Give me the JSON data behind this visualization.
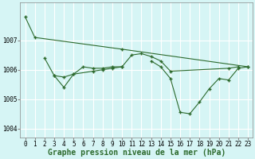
{
  "background_color": "#d6f5f5",
  "grid_color": "#ffffff",
  "line_color": "#2d6a2d",
  "marker_color": "#2d6a2d",
  "xlabel": "Graphe pression niveau de la mer (hPa)",
  "xlabel_fontsize": 7,
  "tick_fontsize": 5.5,
  "xlim": [
    -0.5,
    23.5
  ],
  "ylim": [
    1003.7,
    1008.3
  ],
  "yticks": [
    1004,
    1005,
    1006,
    1007
  ],
  "xticks": [
    0,
    1,
    2,
    3,
    4,
    5,
    6,
    7,
    8,
    9,
    10,
    11,
    12,
    13,
    14,
    15,
    16,
    17,
    18,
    19,
    20,
    21,
    22,
    23
  ],
  "series": [
    {
      "x": [
        0,
        1,
        10,
        23
      ],
      "y": [
        1007.8,
        1007.1,
        1006.7,
        1006.1
      ]
    },
    {
      "x": [
        2,
        3,
        4,
        5,
        6,
        7,
        8,
        9,
        10,
        11,
        12,
        13,
        14,
        15,
        21,
        22
      ],
      "y": [
        1006.4,
        1005.8,
        1005.75,
        1005.85,
        1006.1,
        1006.05,
        1006.05,
        1006.1,
        1006.1,
        1006.5,
        1006.55,
        1006.45,
        1006.3,
        1005.95,
        1006.05,
        1006.1
      ]
    },
    {
      "x": [
        3,
        4,
        5,
        7,
        8,
        9,
        10
      ],
      "y": [
        1005.8,
        1005.4,
        1005.85,
        1005.95,
        1006.0,
        1006.05,
        1006.1
      ]
    },
    {
      "x": [
        13,
        14,
        15,
        16,
        17,
        18,
        19,
        20,
        21,
        22,
        23
      ],
      "y": [
        1006.3,
        1006.1,
        1005.7,
        1004.55,
        1004.5,
        1004.9,
        1005.35,
        1005.7,
        1005.65,
        1006.05,
        1006.1
      ]
    }
  ]
}
